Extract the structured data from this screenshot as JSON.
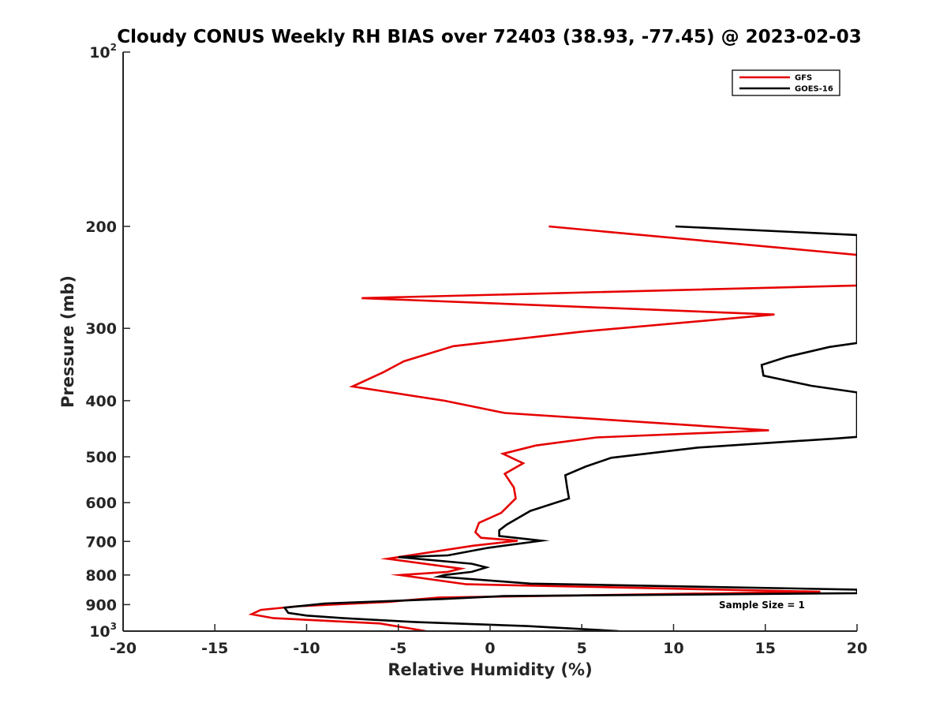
{
  "chart_data": {
    "type": "line",
    "title": "Cloudy CONUS Weekly RH BIAS over 72403 (38.93, -77.45) @ 2023-02-03",
    "xlabel": "Relative Humidity (%)",
    "ylabel": "Pressure (mb)",
    "xlim": [
      -20,
      20
    ],
    "ylim": [
      1000,
      100
    ],
    "yscale": "log",
    "y_reversed": true,
    "grid": false,
    "legend_position": "top-right",
    "x_ticks": [
      -20,
      -15,
      -10,
      -5,
      0,
      5,
      10,
      15,
      20
    ],
    "x_tick_labels": [
      "-20",
      "-15",
      "-10",
      "-5",
      "0",
      "5",
      "10",
      "15",
      "20"
    ],
    "y_ticks": [
      100,
      200,
      300,
      400,
      500,
      600,
      700,
      800,
      900,
      1000
    ],
    "y_tick_labels": [
      {
        "base": "10",
        "sup": "2"
      },
      {
        "base": "200",
        "sup": ""
      },
      {
        "base": "300",
        "sup": ""
      },
      {
        "base": "400",
        "sup": ""
      },
      {
        "base": "500",
        "sup": ""
      },
      {
        "base": "600",
        "sup": ""
      },
      {
        "base": "700",
        "sup": ""
      },
      {
        "base": "800",
        "sup": ""
      },
      {
        "base": "900",
        "sup": ""
      },
      {
        "base": "10",
        "sup": "3"
      }
    ],
    "annotation": "Sample Size = 1",
    "series": [
      {
        "name": "GFS",
        "color": "#e60000",
        "points": [
          [
            3.2,
            200
          ],
          [
            20,
            224
          ],
          [
            20,
            253
          ],
          [
            -7.0,
            266
          ],
          [
            15.5,
            284
          ],
          [
            5.0,
            304
          ],
          [
            -2.0,
            322
          ],
          [
            -4.7,
            342
          ],
          [
            -5.8,
            357
          ],
          [
            -7.5,
            378
          ],
          [
            -2.5,
            400
          ],
          [
            0.8,
            420
          ],
          [
            15.2,
            450
          ],
          [
            5.8,
            463
          ],
          [
            2.5,
            478
          ],
          [
            0.7,
            494
          ],
          [
            1.8,
            513
          ],
          [
            0.8,
            535
          ],
          [
            1.3,
            565
          ],
          [
            1.4,
            590
          ],
          [
            0.6,
            625
          ],
          [
            -0.6,
            650
          ],
          [
            -0.8,
            675
          ],
          [
            -0.5,
            690
          ],
          [
            1.5,
            698
          ],
          [
            -0.9,
            712
          ],
          [
            -5.6,
            750
          ],
          [
            -1.6,
            780
          ],
          [
            -2.3,
            790
          ],
          [
            -4.9,
            800
          ],
          [
            -1.3,
            830
          ],
          [
            18.0,
            855
          ],
          [
            -2.8,
            875
          ],
          [
            -5.5,
            890
          ],
          [
            -10.5,
            906
          ],
          [
            -12.5,
            919
          ],
          [
            -13.0,
            935
          ],
          [
            -11.8,
            950
          ],
          [
            -6.0,
            970
          ],
          [
            -3.5,
            1000
          ]
        ]
      },
      {
        "name": "GOES-16",
        "color": "#000000",
        "points": [
          [
            10.1,
            200
          ],
          [
            20,
            207
          ],
          [
            20,
            318
          ],
          [
            18.5,
            323
          ],
          [
            16.2,
            336
          ],
          [
            14.8,
            347
          ],
          [
            14.9,
            362
          ],
          [
            17.5,
            377
          ],
          [
            20,
            387
          ],
          [
            20,
            462
          ],
          [
            18.8,
            465
          ],
          [
            11.3,
            482
          ],
          [
            6.6,
            502
          ],
          [
            5.2,
            520
          ],
          [
            4.1,
            538
          ],
          [
            4.2,
            565
          ],
          [
            4.3,
            590
          ],
          [
            2.2,
            620
          ],
          [
            0.9,
            655
          ],
          [
            0.5,
            670
          ],
          [
            0.5,
            685
          ],
          [
            2.8,
            698
          ],
          [
            -0.1,
            718
          ],
          [
            -2.3,
            740
          ],
          [
            -5.0,
            745
          ],
          [
            -1.0,
            765
          ],
          [
            -0.2,
            776
          ],
          [
            -1.0,
            790
          ],
          [
            -2.5,
            800
          ],
          [
            -2.8,
            805
          ],
          [
            2.2,
            828
          ],
          [
            20,
            848
          ],
          [
            20,
            860
          ],
          [
            0.7,
            870
          ],
          [
            -2.6,
            880
          ],
          [
            -9.0,
            896
          ],
          [
            -11.2,
            911
          ],
          [
            -11.0,
            930
          ],
          [
            -10.0,
            940
          ],
          [
            -8.0,
            950
          ],
          [
            -4.0,
            965
          ],
          [
            2.0,
            980
          ],
          [
            7.0,
            1000
          ]
        ]
      }
    ]
  }
}
